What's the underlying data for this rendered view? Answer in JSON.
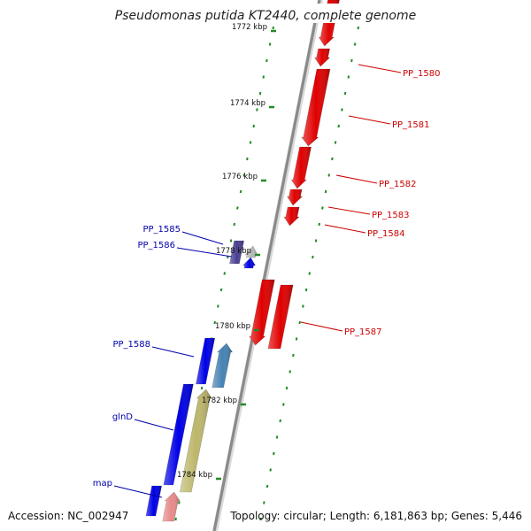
{
  "title": "Pseudomonas putida KT2440, complete genome",
  "footer": {
    "accession": "Accession: NC_002947",
    "summary": "Topology: circular; Length: 6,181,863 bp; Genes: 5,446"
  },
  "colors": {
    "backbone": "#8a8a8a",
    "tick": "#228b22",
    "label_forward": "#cc0000",
    "label_reverse": "#0000aa"
  },
  "position_ticks": [
    {
      "label": "1772 kbp"
    },
    {
      "label": "1774 kbp"
    },
    {
      "label": "1776 kbp"
    },
    {
      "label": "1778 kbp"
    },
    {
      "label": "1780 kbp"
    },
    {
      "label": "1782 kbp"
    },
    {
      "label": "1784 kbp"
    }
  ],
  "gene_labels": [
    {
      "text": "PP_1580",
      "side": "right"
    },
    {
      "text": "PP_1581",
      "side": "right"
    },
    {
      "text": "PP_1582",
      "side": "right"
    },
    {
      "text": "PP_1583",
      "side": "right"
    },
    {
      "text": "PP_1584",
      "side": "right"
    },
    {
      "text": "PP_1587",
      "side": "right"
    },
    {
      "text": "PP_1585",
      "side": "left"
    },
    {
      "text": "PP_1586",
      "side": "left"
    },
    {
      "text": "PP_1588",
      "side": "left"
    },
    {
      "text": "glnD",
      "side": "left"
    },
    {
      "text": "map",
      "side": "left"
    }
  ],
  "features": [
    {
      "name": "gene-red-1",
      "fill": "#e00000"
    },
    {
      "name": "gene-red-2",
      "fill": "#e00000"
    },
    {
      "name": "gene-red-3",
      "fill": "#e00000"
    },
    {
      "name": "gene-red-4",
      "fill": "#e00000"
    },
    {
      "name": "gene-red-5",
      "fill": "#e00000"
    },
    {
      "name": "gene-red-6",
      "fill": "#e00000"
    },
    {
      "name": "gene-red-7",
      "fill": "#e00000"
    },
    {
      "name": "gene-red-8",
      "fill": "#e00000"
    },
    {
      "name": "gene-pp1587-rect",
      "fill": "#4a3f8f"
    },
    {
      "name": "gene-pp1585-rect",
      "fill": "#b8b8b8"
    },
    {
      "name": "gene-blue-small-1",
      "fill": "#0000e6"
    },
    {
      "name": "gene-blue-small-2",
      "fill": "#0000e6"
    },
    {
      "name": "gene-pp1588-rect",
      "fill": "#4682b4"
    },
    {
      "name": "gene-pp1588-arrow",
      "fill": "#0000e6"
    },
    {
      "name": "gene-glnd-rect",
      "fill": "#bdb76b"
    },
    {
      "name": "gene-glnd-arrow",
      "fill": "#0000e6"
    },
    {
      "name": "gene-map-rect",
      "fill": "#e88a8a"
    },
    {
      "name": "gene-map-arrow",
      "fill": "#0000e6"
    }
  ]
}
